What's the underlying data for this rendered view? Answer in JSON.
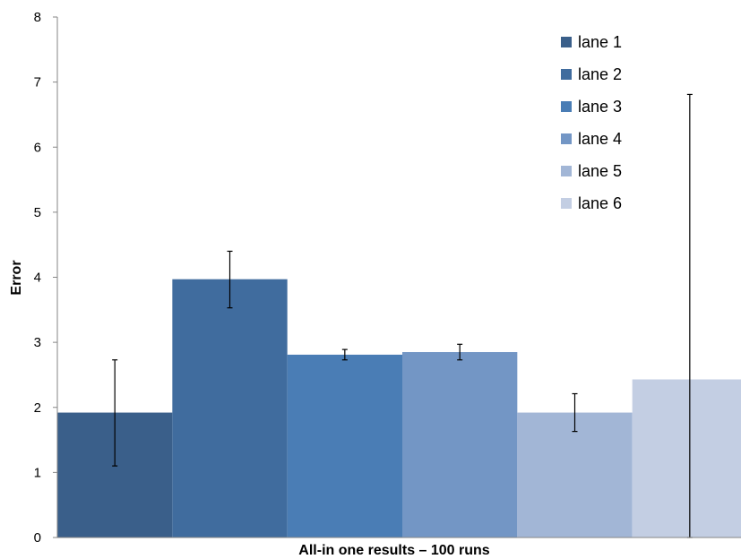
{
  "chart_data": {
    "type": "bar",
    "xlabel": "All-in one results – 100 runs",
    "ylabel": "Error",
    "ylim": [
      0,
      8
    ],
    "yticks": [
      "0",
      "1",
      "2",
      "3",
      "4",
      "5",
      "6",
      "7",
      "8"
    ],
    "grid": false,
    "legend_position": "top-right",
    "series": [
      {
        "name": "lane 1",
        "value": 1.92,
        "err_low": 1.1,
        "err_high": 2.73,
        "color": "#3A5F8A"
      },
      {
        "name": "lane 2",
        "value": 3.97,
        "err_low": 3.53,
        "err_high": 4.4,
        "color": "#406C9E"
      },
      {
        "name": "lane 3",
        "value": 2.81,
        "err_low": 2.73,
        "err_high": 2.89,
        "color": "#4A7DB5"
      },
      {
        "name": "lane 4",
        "value": 2.85,
        "err_low": 2.73,
        "err_high": 2.97,
        "color": "#7396C5"
      },
      {
        "name": "lane 5",
        "value": 1.92,
        "err_low": 1.63,
        "err_high": 2.21,
        "color": "#A2B6D6"
      },
      {
        "name": "lane 6",
        "value": 2.43,
        "err_low": 0.0,
        "err_high": 6.81,
        "color": "#C3CEE3"
      }
    ]
  }
}
